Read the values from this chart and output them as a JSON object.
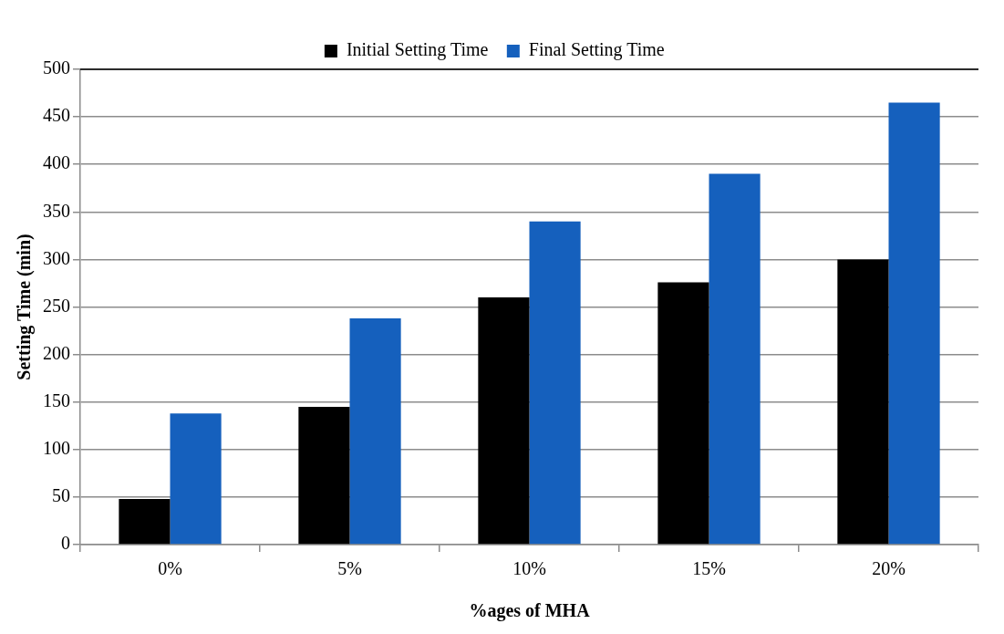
{
  "chart_data": {
    "type": "bar",
    "xlabel": "%ages of MHA",
    "ylabel": "Setting Time (min)",
    "categories": [
      "0%",
      "5%",
      "10%",
      "15%",
      "20%"
    ],
    "series": [
      {
        "name": "Initial Setting Time",
        "color": "#000000",
        "values": [
          48,
          145,
          260,
          276,
          300
        ]
      },
      {
        "name": "Final Setting Time",
        "color": "#1560bd",
        "values": [
          138,
          238,
          340,
          390,
          465
        ]
      }
    ],
    "ylim": [
      0,
      500
    ],
    "yticks": [
      0,
      50,
      100,
      150,
      200,
      250,
      300,
      350,
      400,
      450,
      500
    ],
    "grid": "y",
    "legend": "top"
  }
}
